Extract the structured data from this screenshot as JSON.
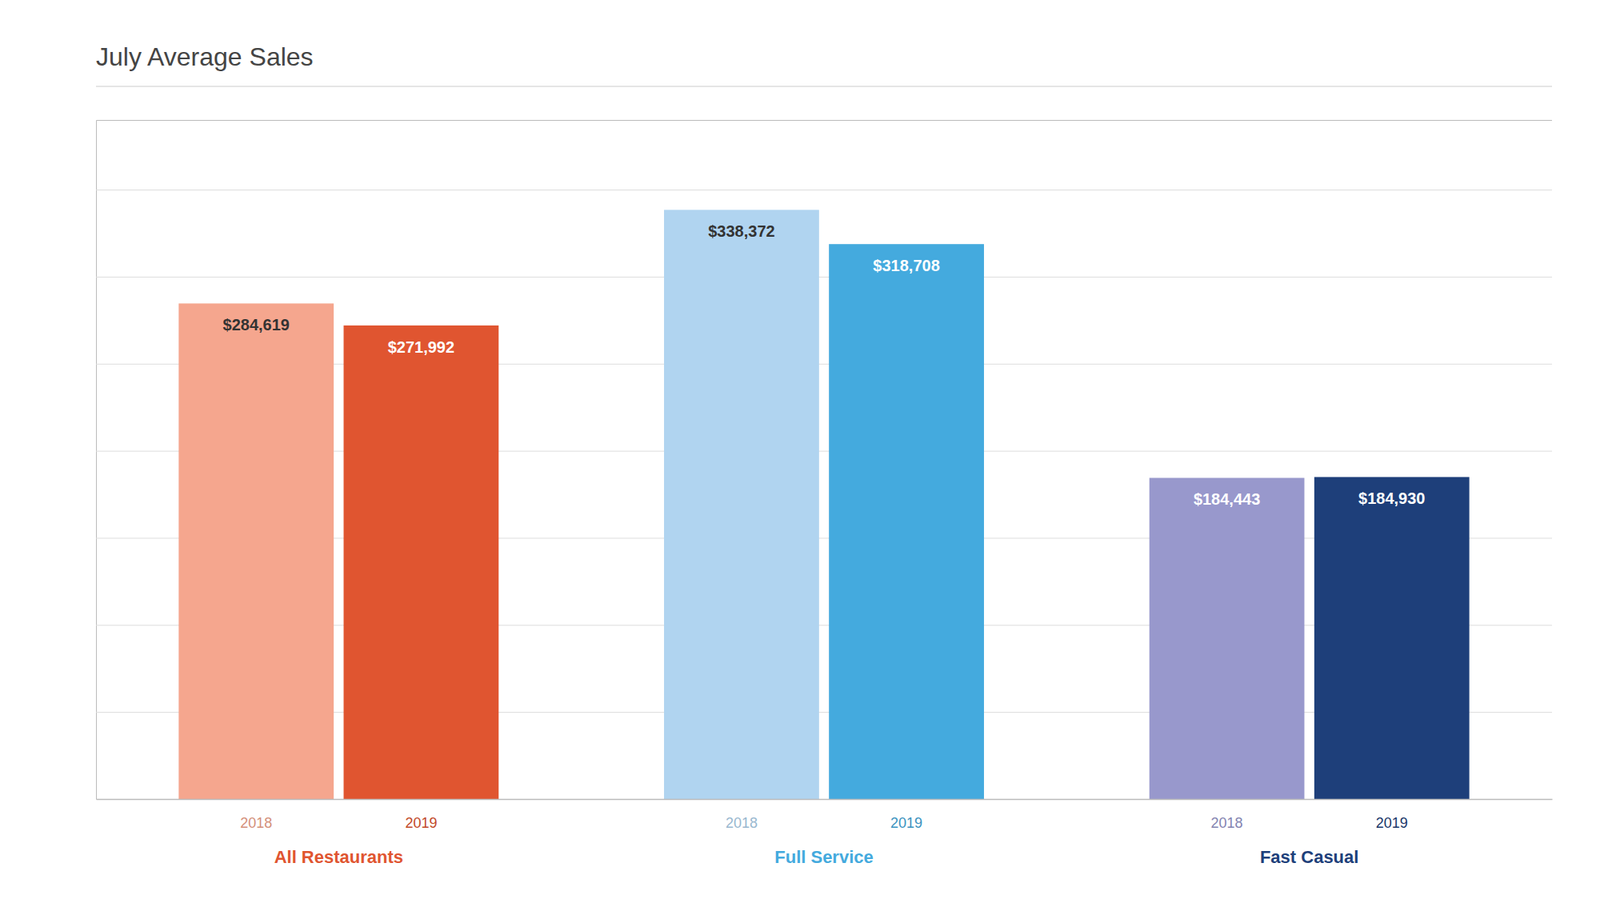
{
  "chart_data": {
    "type": "bar",
    "title": "July Average Sales",
    "categories": [
      "All Restaurants",
      "Full Service",
      "Fast Casual"
    ],
    "series": [
      {
        "name": "2018",
        "colors": [
          "#f5a68e",
          "#b0d4f0",
          "#9898cc"
        ],
        "values": [
          284619,
          338372,
          184443
        ],
        "value_labels": [
          "$284,619",
          "$338,372",
          "$184,443"
        ]
      },
      {
        "name": "2019",
        "colors": [
          "#e05530",
          "#44aade",
          "#1e3f7a"
        ],
        "values": [
          271992,
          318708,
          184930
        ],
        "value_labels": [
          "$271,992",
          "$318,708",
          "$184,930"
        ]
      }
    ],
    "ylim": [
      0,
      390000
    ],
    "yticks": [
      0,
      50000,
      100000,
      150000,
      200000,
      250000,
      300000,
      350000
    ],
    "grid": true,
    "data_labels": true,
    "tick_labels": "x"
  }
}
